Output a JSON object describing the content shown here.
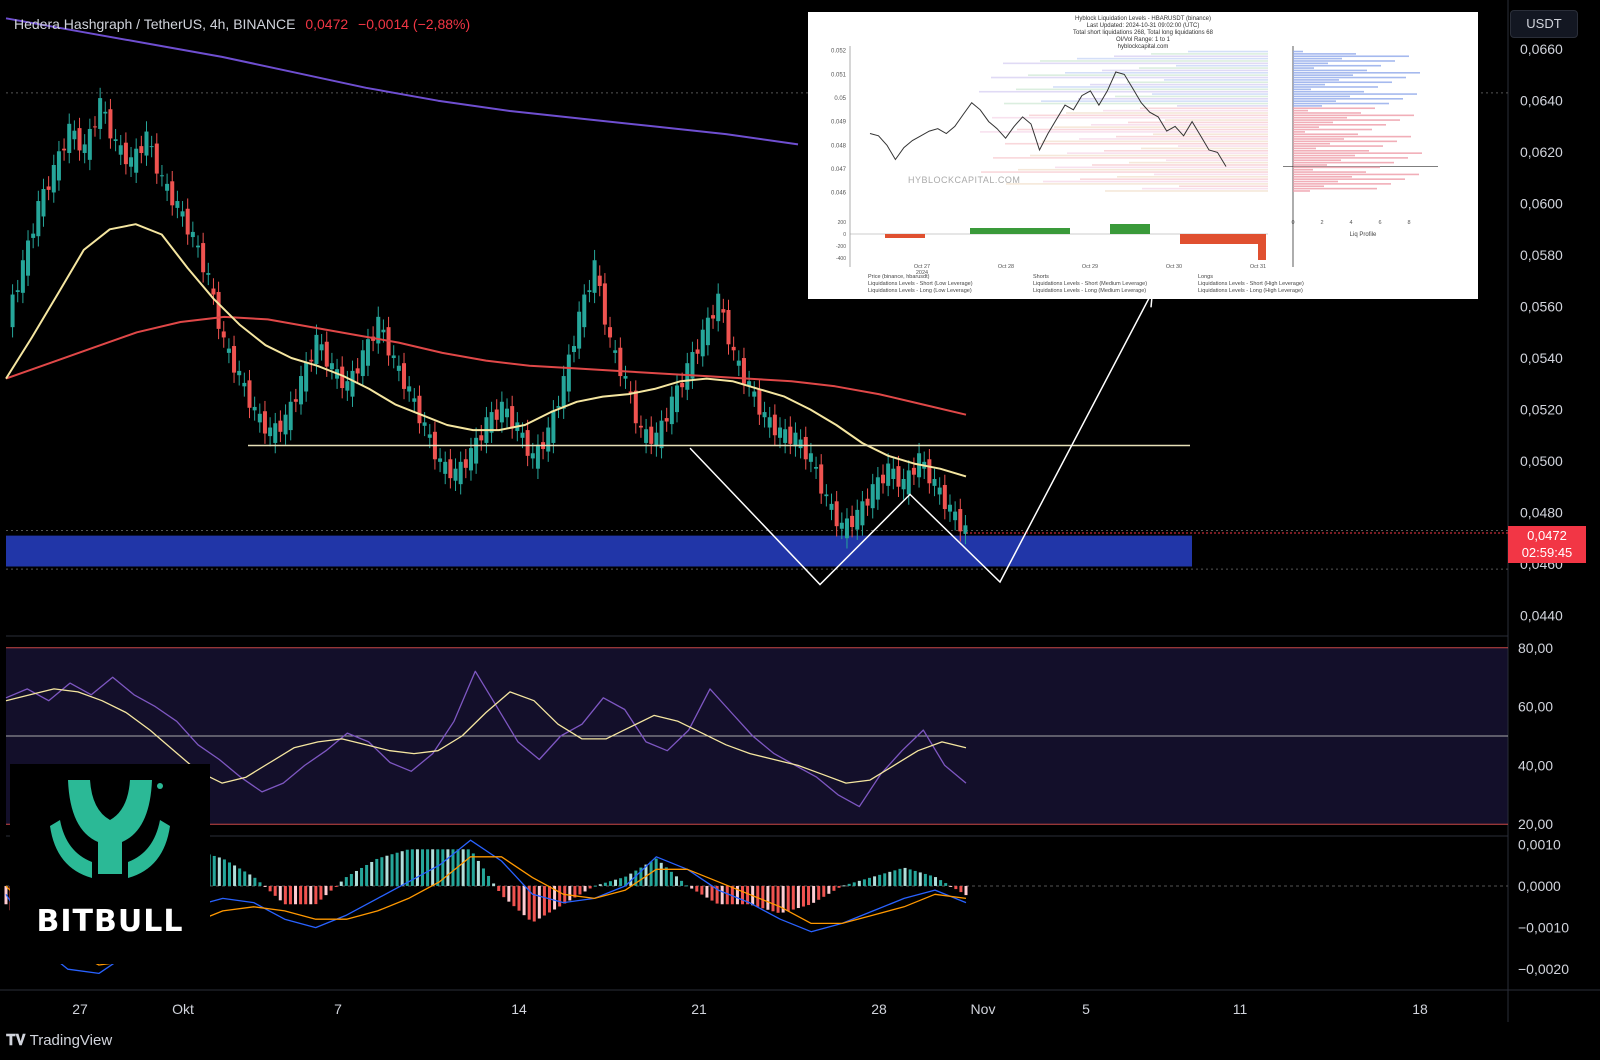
{
  "header": {
    "symbol": "Hedera Hashgraph / TetherUS, 4h, BINANCE",
    "price": "0,0472",
    "change": "−0,0014 (−2,88%)"
  },
  "currency_button": "USDT",
  "last_price": {
    "value": "0,0472",
    "countdown": "02:59:45"
  },
  "brand": {
    "name": "BITBULL",
    "color": "#2bb996"
  },
  "footer": {
    "name": "TradingView",
    "icon": "tradingview-logo-icon"
  },
  "colors": {
    "up": "#26a69a",
    "down": "#ef5350",
    "ma_short": "#f5e6a0",
    "ma_mid": "#e04848",
    "ma_long": "#6f4fd1",
    "zone": "#2136a8",
    "rsi": "#7e57c2",
    "macd": "#2962ff",
    "signal": "#ff9800"
  },
  "inset": {
    "title_lines": [
      "Hyblock Liquidation Levels - HBARUSDT (binance)",
      "Last Updated: 2024-10-31 09:02:00 (UTC)",
      "Total short liquidations 268, Total long liquidations 68",
      "OI/Vol Range: 1 to 1",
      "hyblockcapital.com"
    ],
    "watermark": "HYBLOCKCAPITAL.COM",
    "profile_label": "Liq Profile",
    "y_ticks": [
      "0.052",
      "0.051",
      "0.05",
      "0.049",
      "0.048",
      "0.047",
      "0.046"
    ],
    "x_ticks": [
      "Oct 27\n2024",
      "Oct 28",
      "Oct 29",
      "Oct 30",
      "Oct 31"
    ],
    "delta_ticks": [
      "200",
      "0",
      "-200",
      "-400"
    ],
    "profile_ticks": [
      "0",
      "2",
      "4",
      "6",
      "8"
    ],
    "legend": [
      "Price (binance, hbarusdt)",
      "Liquidations Levels - Short (Low Leverage)",
      "Liquidations Levels - Long (Low Leverage)",
      "Shorts",
      "Liquidations Levels - Short (Medium Leverage)",
      "Liquidations Levels - Long (Medium Leverage)",
      "Longs",
      "Liquidations Levels - Short (High Leverage)",
      "Liquidations Levels - Long (High Leverage)"
    ],
    "price_series": [
      0.0485,
      0.0484,
      0.048,
      0.0474,
      0.0479,
      0.0482,
      0.0484,
      0.0486,
      0.0487,
      0.0485,
      0.0488,
      0.0493,
      0.0498,
      0.0495,
      0.049,
      0.0487,
      0.0483,
      0.0488,
      0.0492,
      0.0489,
      0.0478,
      0.0485,
      0.0491,
      0.0497,
      0.0495,
      0.0501,
      0.0503,
      0.0497,
      0.0503,
      0.0511,
      0.051,
      0.0504,
      0.0498,
      0.0494,
      0.0492,
      0.0486,
      0.0488,
      0.0484,
      0.049,
      0.0484,
      0.0478,
      0.0477,
      0.0471
    ]
  },
  "chart_data": [
    {
      "type": "candlestick",
      "title": "Hedera Hashgraph / TetherUS, 4h, BINANCE",
      "x_ticks": [
        "27",
        "Okt",
        "7",
        "14",
        "21",
        "28",
        "Nov",
        "5",
        "11",
        "18"
      ],
      "y_ticks": [
        "0,0660",
        "0,0640",
        "0,0620",
        "0,0600",
        "0,0580",
        "0,0560",
        "0,0540",
        "0,0520",
        "0,0500",
        "0,0480",
        "0,0460",
        "0,0440"
      ],
      "ylim": [
        0.0432,
        0.0676
      ],
      "close_path": [
        0.0555,
        0.0575,
        0.0598,
        0.0612,
        0.0628,
        0.062,
        0.0638,
        0.0622,
        0.0615,
        0.0625,
        0.0608,
        0.0598,
        0.0586,
        0.057,
        0.0545,
        0.0532,
        0.0518,
        0.051,
        0.0515,
        0.053,
        0.0546,
        0.0535,
        0.0528,
        0.054,
        0.0553,
        0.0538,
        0.0526,
        0.0512,
        0.0498,
        0.0494,
        0.0502,
        0.0514,
        0.052,
        0.0512,
        0.05,
        0.051,
        0.053,
        0.0555,
        0.0575,
        0.0545,
        0.053,
        0.051,
        0.0508,
        0.0522,
        0.0535,
        0.0548,
        0.0562,
        0.054,
        0.0528,
        0.0516,
        0.051,
        0.0508,
        0.05,
        0.0484,
        0.0473,
        0.0478,
        0.0488,
        0.0496,
        0.049,
        0.05,
        0.049,
        0.048,
        0.0472
      ],
      "ma_short": [
        0.0532,
        0.0548,
        0.0565,
        0.0582,
        0.059,
        0.0592,
        0.0588,
        0.0575,
        0.0563,
        0.0553,
        0.0545,
        0.054,
        0.0537,
        0.0533,
        0.0528,
        0.0522,
        0.0518,
        0.0514,
        0.0512,
        0.0512,
        0.0514,
        0.0519,
        0.0523,
        0.0525,
        0.0526,
        0.0528,
        0.0531,
        0.0532,
        0.0531,
        0.0528,
        0.0525,
        0.052,
        0.0514,
        0.0507,
        0.0502,
        0.0499,
        0.0497,
        0.0494
      ],
      "ma_mid": [
        0.0532,
        0.0538,
        0.0544,
        0.055,
        0.0554,
        0.0556,
        0.0555,
        0.0552,
        0.0549,
        0.0546,
        0.0542,
        0.0539,
        0.0537,
        0.0536,
        0.0535,
        0.0534,
        0.0533,
        0.0532,
        0.0531,
        0.0529,
        0.0526,
        0.0522,
        0.0518
      ],
      "ma_long": [
        0.0672,
        0.0667,
        0.0662,
        0.0657,
        0.0651,
        0.0645,
        0.064,
        0.0636,
        0.0633,
        0.063,
        0.0627,
        0.0623
      ],
      "support_line": 0.0506,
      "demand_zone": [
        0.0459,
        0.0471
      ],
      "projection": [
        0.0505,
        0.0452,
        0.0487,
        0.0453,
        0.0564
      ],
      "last_price": 0.0472
    },
    {
      "type": "line",
      "name": "RSI",
      "y_ticks": [
        "80,00",
        "60,00",
        "40,00",
        "20,00"
      ],
      "ylim": [
        16,
        84
      ],
      "bands": [
        80,
        50,
        20
      ],
      "rsi": [
        63,
        66,
        62,
        68,
        64,
        70,
        64,
        60,
        55,
        47,
        42,
        36,
        31,
        34,
        40,
        45,
        51,
        48,
        41,
        38,
        44,
        55,
        72,
        60,
        48,
        42,
        50,
        54,
        63,
        59,
        48,
        45,
        52,
        66,
        58,
        50,
        44,
        40,
        36,
        30,
        26,
        37,
        45,
        52,
        40,
        34
      ],
      "signal": [
        62,
        64,
        66,
        65,
        62,
        58,
        52,
        45,
        38,
        34,
        36,
        41,
        46,
        48,
        49,
        47,
        45,
        44,
        45,
        50,
        58,
        65,
        62,
        54,
        49,
        49,
        53,
        57,
        55,
        51,
        47,
        44,
        42,
        40,
        37,
        34,
        35,
        40,
        45,
        48,
        46
      ]
    },
    {
      "type": "histogram",
      "name": "MACD",
      "y_ticks": [
        "0,0010",
        "0,0000",
        "−0,0010",
        "−0,0020"
      ],
      "ylim": [
        -0.0025,
        0.0012
      ],
      "macd": [
        -0.0002,
        -0.0014,
        -0.002,
        -0.0021,
        -0.0016,
        -0.001,
        -0.0005,
        -0.0003,
        -0.0004,
        -0.0008,
        -0.001,
        -0.0007,
        -0.0003,
        0.0001,
        0.0005,
        0.0011,
        0.0006,
        -0.0002,
        -0.0004,
        -0.0003,
        0.0,
        0.0007,
        0.0004,
        -0.0001,
        -0.0004,
        -0.0008,
        -0.0011,
        -0.0009,
        -0.0006,
        -0.0003,
        -0.0001,
        -0.0004
      ],
      "signal": [
        0.0,
        -0.0008,
        -0.0015,
        -0.0019,
        -0.0018,
        -0.0014,
        -0.0009,
        -0.0006,
        -0.0005,
        -0.0006,
        -0.0008,
        -0.0008,
        -0.0006,
        -0.0003,
        0.0001,
        0.0007,
        0.0007,
        0.0002,
        -0.0002,
        -0.0003,
        -0.0001,
        0.0004,
        0.0004,
        0.0001,
        -0.0002,
        -0.0005,
        -0.0009,
        -0.0009,
        -0.0007,
        -0.0005,
        -0.0002,
        -0.0003
      ]
    }
  ]
}
